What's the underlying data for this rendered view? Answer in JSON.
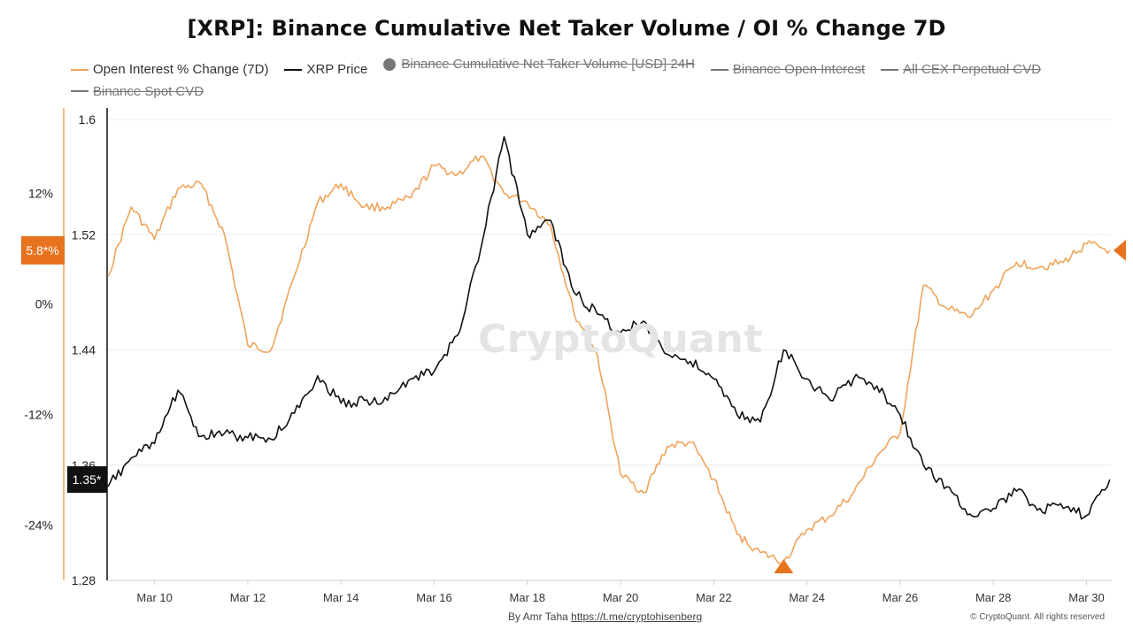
{
  "chart_data": {
    "type": "line",
    "title": "[XRP]: Binance Cumulative Net Taker Volume / OI % Change 7D",
    "legend_placement": "top-left",
    "grid": "horizontal",
    "legend": [
      {
        "name": "Open Interest % Change (7D)",
        "color": "#F0A45C",
        "visible": true,
        "marker": "line"
      },
      {
        "name": "XRP Price",
        "color": "#111111",
        "visible": true,
        "marker": "line"
      },
      {
        "name": "Binance Cumulative Net Taker Volume [USD] 24H",
        "color": "#777777",
        "visible": false,
        "marker": "dot"
      },
      {
        "name": "Binance Open Interest",
        "color": "#777777",
        "visible": false,
        "marker": "line"
      },
      {
        "name": "All CEX Perpetual CVD",
        "color": "#777777",
        "visible": false,
        "marker": "line"
      },
      {
        "name": "Binance Spot CVD",
        "color": "#777777",
        "visible": false,
        "marker": "line"
      }
    ],
    "x_axis": {
      "type": "date",
      "range": [
        "2025-03-09",
        "2025-03-30"
      ],
      "ticks": [
        "Mar 10",
        "Mar 12",
        "Mar 14",
        "Mar 16",
        "Mar 18",
        "Mar 20",
        "Mar 22",
        "Mar 24",
        "Mar 26",
        "Mar 28",
        "Mar 30"
      ]
    },
    "y_axis_price": {
      "range": [
        1.28,
        1.6
      ],
      "ticks": [
        "1.6",
        "1.52",
        "1.44",
        "1.36",
        "1.28"
      ],
      "last_value_label": "1.35*",
      "label_color": "#111111"
    },
    "y_axis_oi": {
      "range": [
        -30,
        20
      ],
      "ticks": [
        "12%",
        "0%",
        "-12%",
        "-24%"
      ],
      "last_value_label": "5.8*%",
      "label_color": "#E8731F"
    },
    "series": [
      {
        "name": "Open Interest % Change (7D)",
        "color": "#F0A45C",
        "axis": "oi",
        "x": [
          "2025-03-09 00:00",
          "2025-03-09 12:00",
          "2025-03-10 00:00",
          "2025-03-10 12:00",
          "2025-03-11 00:00",
          "2025-03-11 12:00",
          "2025-03-12 00:00",
          "2025-03-12 12:00",
          "2025-03-13 00:00",
          "2025-03-13 12:00",
          "2025-03-14 00:00",
          "2025-03-14 12:00",
          "2025-03-15 00:00",
          "2025-03-15 12:00",
          "2025-03-16 00:00",
          "2025-03-16 12:00",
          "2025-03-17 00:00",
          "2025-03-17 12:00",
          "2025-03-18 00:00",
          "2025-03-18 12:00",
          "2025-03-19 00:00",
          "2025-03-19 12:00",
          "2025-03-20 00:00",
          "2025-03-20 12:00",
          "2025-03-21 00:00",
          "2025-03-21 12:00",
          "2025-03-22 00:00",
          "2025-03-22 12:00",
          "2025-03-23 00:00",
          "2025-03-23 12:00",
          "2025-03-24 00:00",
          "2025-03-24 12:00",
          "2025-03-25 00:00",
          "2025-03-25 12:00",
          "2025-03-26 00:00",
          "2025-03-26 12:00",
          "2025-03-27 00:00",
          "2025-03-27 12:00",
          "2025-03-28 00:00",
          "2025-03-28 12:00",
          "2025-03-29 00:00",
          "2025-03-29 12:00",
          "2025-03-30 00:00",
          "2025-03-30 12:00"
        ],
        "values": [
          3.0,
          10.5,
          7.0,
          12.5,
          13.0,
          7.5,
          -4.5,
          -5.0,
          3.0,
          11.0,
          13.0,
          10.5,
          10.5,
          11.5,
          15.0,
          14.0,
          16.0,
          12.0,
          11.0,
          8.5,
          -1.0,
          -5.5,
          -18.5,
          -20.5,
          -15.5,
          -15.0,
          -19.0,
          -25.0,
          -27.0,
          -28.0,
          -24.5,
          -23.0,
          -20.5,
          -16.5,
          -14.0,
          2.0,
          -0.5,
          -1.5,
          1.5,
          4.5,
          4.0,
          4.5,
          6.5,
          5.8
        ]
      },
      {
        "name": "XRP Price",
        "color": "#111111",
        "axis": "price",
        "x": [
          "2025-03-09 00:00",
          "2025-03-09 12:00",
          "2025-03-10 00:00",
          "2025-03-10 12:00",
          "2025-03-11 00:00",
          "2025-03-11 12:00",
          "2025-03-12 00:00",
          "2025-03-12 12:00",
          "2025-03-13 00:00",
          "2025-03-13 12:00",
          "2025-03-14 00:00",
          "2025-03-14 12:00",
          "2025-03-15 00:00",
          "2025-03-15 12:00",
          "2025-03-16 00:00",
          "2025-03-16 12:00",
          "2025-03-17 00:00",
          "2025-03-17 12:00",
          "2025-03-18 00:00",
          "2025-03-18 12:00",
          "2025-03-19 00:00",
          "2025-03-19 12:00",
          "2025-03-20 00:00",
          "2025-03-20 12:00",
          "2025-03-21 00:00",
          "2025-03-21 12:00",
          "2025-03-22 00:00",
          "2025-03-22 12:00",
          "2025-03-23 00:00",
          "2025-03-23 12:00",
          "2025-03-24 00:00",
          "2025-03-24 12:00",
          "2025-03-25 00:00",
          "2025-03-25 12:00",
          "2025-03-26 00:00",
          "2025-03-26 12:00",
          "2025-03-27 00:00",
          "2025-03-27 12:00",
          "2025-03-28 00:00",
          "2025-03-28 12:00",
          "2025-03-29 00:00",
          "2025-03-29 12:00",
          "2025-03-30 00:00",
          "2025-03-30 12:00"
        ],
        "values": [
          1.345,
          1.365,
          1.375,
          1.412,
          1.38,
          1.382,
          1.379,
          1.378,
          1.396,
          1.422,
          1.403,
          1.405,
          1.405,
          1.42,
          1.425,
          1.45,
          1.51,
          1.588,
          1.52,
          1.53,
          1.48,
          1.465,
          1.452,
          1.46,
          1.437,
          1.432,
          1.42,
          1.395,
          1.39,
          1.44,
          1.42,
          1.405,
          1.42,
          1.415,
          1.395,
          1.36,
          1.345,
          1.326,
          1.33,
          1.342,
          1.33,
          1.33,
          1.325,
          1.35
        ]
      }
    ]
  },
  "watermark": "CryptoQuant",
  "footer": {
    "byline": "By Amr Taha",
    "link": "https://t.me/cryptohisenberg",
    "copyright": "© CryptoQuant. All rights reserved"
  }
}
